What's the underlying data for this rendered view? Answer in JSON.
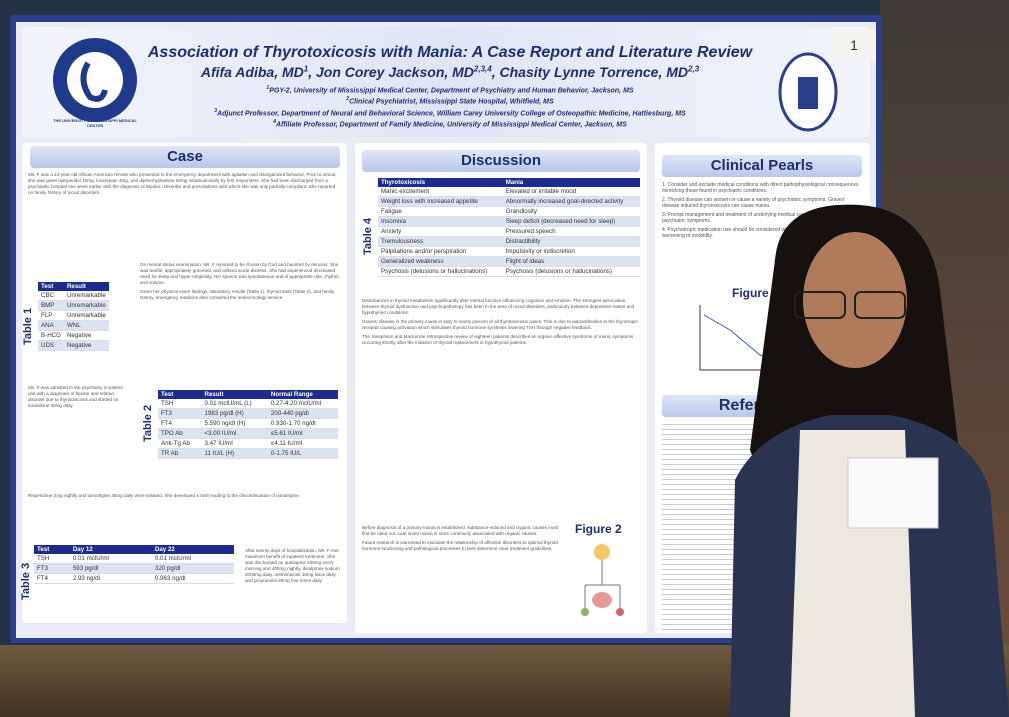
{
  "poster": {
    "title": "Association of Thyrotoxicosis with Mania: A Case Report and Literature Review",
    "authors": [
      {
        "name": "Afifa Adiba, MD",
        "sup": "1"
      },
      {
        "name": "Jon Corey Jackson, MD",
        "sup": "2,3,4"
      },
      {
        "name": "Chasity Lynne Torrence, MD",
        "sup": "2,3"
      }
    ],
    "affiliations": [
      {
        "sup": "1",
        "text": "PGY-2, University of Mississippi Medical Center, Department of Psychiatry and Human Behavior, Jackson, MS"
      },
      {
        "sup": "2",
        "text": "Clinical Psychiatrist, Mississippi State Hospital, Whitfield, MS"
      },
      {
        "sup": "3",
        "text": "Adjunct Professor, Department of Neural and Behavioral Science, William Carey University College of Osteopathic Medicine, Hattiesburg, MS"
      },
      {
        "sup": "4",
        "text": "Affiliate Professor, Department of Family Medicine, University of Mississippi Medical Center, Jackson, MS"
      }
    ],
    "logo_text": "THE UNIVERSITY OF MISSISSIPPI MEDICAL CENTER",
    "sticker": "1",
    "case": {
      "heading": "Case",
      "paragraphs": [
        "Ms. F was a 24-year-old African American female who presented to the emergency department with agitation and disorganized behavior. Prior to arrival, she was given haloperidol 10mg, lorazepam 4mg, and diphenhydramine 50mg intramuscularly by first responders. She had been discharged from a psychiatric hospital one week earlier with the diagnosis of Bipolar I Disorder and prescriptions with which she was only partially compliant. She reported no family history of mood disorders.",
        "On mental status examination, Ms. F reported to be chosen by God and haunted by demons. She was tearful, appropriately groomed, and without acute distress. She had experienced decreased need for sleep and hyper-religiosity. Her speech was spontaneous and of appropriate rate, rhythm, and volume.",
        "Given her physical exam findings, laboratory results (Table 1), thyroid tests (Table 2), and family history, emergency medicine also consulted the endocrinology service.",
        "Ms. F was admitted to the psychiatry in-patient unit with a diagnosis of bipolar and related disorder due to thyrotoxicosis and started on lurasidone 40mg daily.",
        "Risperidone 2mg nightly and lamotrigine 25mg daily were initiated. She developed a rash leading to the discontinuation of lamotrigine.",
        "After twenty days of hospitalization, Ms. F met maximum benefit of inpatient treatment. She was discharged on quetiapine 200mg every morning and 400mg nightly, divalproex sodium 2000mg daily, methimazole 10mg twice daily, and propranolol 60mg four times daily."
      ]
    },
    "table1": {
      "label": "Table 1",
      "header": [
        "Test",
        "Result"
      ],
      "rows": [
        [
          "CBC",
          "Unremarkable"
        ],
        [
          "BMP",
          "Unremarkable"
        ],
        [
          "FLP",
          "Unremarkable"
        ],
        [
          "ANA",
          "WNL"
        ],
        [
          "B-HCG",
          "Negative"
        ],
        [
          "UDS",
          "Negative"
        ]
      ]
    },
    "table2": {
      "label": "Table 2",
      "header": [
        "Test",
        "Result",
        "Normal Range"
      ],
      "rows": [
        [
          "TSH",
          "0.01 mclU/mL (L)",
          "0.27-4.20 mclU/ml"
        ],
        [
          "FT3",
          "1983 pg/dl (H)",
          "200-440 pg/dl"
        ],
        [
          "FT4",
          "5.590 ng/dl (H)",
          "0.930-1.70 ng/dl"
        ],
        [
          "TPO Ab",
          "<3.00 IU/ml",
          "≤5.61 IU/ml"
        ],
        [
          "Anti-Tg Ab",
          "3.47 IU/ml",
          "≤4.11 IU/ml"
        ],
        [
          "TR Ab",
          "11 IU/L (H)",
          "0-1.75 IU/L"
        ]
      ]
    },
    "table3": {
      "label": "Table 3",
      "header": [
        "Test",
        "Day 12",
        "Day 22"
      ],
      "rows": [
        [
          "TSH",
          "0.01 mclU/ml",
          "0.01 mclU/ml"
        ],
        [
          "FT3",
          "593 pg/dl",
          "320 pg/dl"
        ],
        [
          "FT4",
          "2.93 ng/dl",
          "0.963 ng/dl"
        ]
      ]
    },
    "discussion": {
      "heading": "Discussion",
      "paragraphs": [
        "Disturbances in thyroid metabolism significantly alter mental function influencing cognition and emotion. The strongest association between thyroid dysfunction and psychopathology has been in the area of mood disorders, particularly between depressive states and hypothyroid conditions.",
        "Graves' disease is the primary cause in sixty to ninety percent of all thyrotoxicosis cases. This is due to autoantibodies to the thyrotropin receptor causing activation which stimulates thyroid hormone synthesis lowering TSH through negative feedback.",
        "The Josephson and Mackenzie retrospective review of eighteen patients describes an organic affective syndrome of manic symptoms occurring shortly after the initiation of thyroid replacement in hypothyroid patients.",
        "Before diagnosis of a primary mania is established, substance-induced and organic causes must first be ruled out. Late onset mania is more commonly associated with organic causes.",
        "Future research is warranted to elucidate the relationship of affective disorders to optimal thyroid hormone functioning and pathological processes to best determine clear treatment guidelines."
      ]
    },
    "table4": {
      "label": "Table 4",
      "header": [
        "Thyrotoxicosis",
        "Mania"
      ],
      "rows": [
        [
          "Manic excitement",
          "Elevated or irritable mood"
        ],
        [
          "Weight loss with increased appetite",
          "Abnormally increased goal-directed activity"
        ],
        [
          "Fatigue",
          "Grandiosity"
        ],
        [
          "Insomnia",
          "Sleep deficit (decreased need for sleep)"
        ],
        [
          "Anxiety",
          "Pressured speech"
        ],
        [
          "Tremulousness",
          "Distractibility"
        ],
        [
          "Palpitations and/or perspiration",
          "Impulsivity or indiscretion"
        ],
        [
          "Generalized weakness",
          "Flight of ideas"
        ],
        [
          "Psychosis (delusions or hallucinations)",
          "Psychosis (delusions or hallucinations)"
        ]
      ]
    },
    "figure1": "Figure 1",
    "figure2": "Figure 2",
    "pearls": {
      "heading": "Clinical Pearls",
      "items": [
        "1. Consider and exclude medical conditions with direct pathophysiological consequences mimicking those found in psychiatric conditions.",
        "2. Thyroid disease can worsen or cause a variety of psychiatric symptoms. Graves' disease induced thyrotoxicosis can cause mania.",
        "3. Prompt management and treatment of underlying medical causes manifesting as psychiatric symptoms.",
        "4. Psychotropic medication use should be considered with consideration given to potential worsening of morbidity."
      ]
    },
    "references": {
      "heading": "References"
    }
  }
}
